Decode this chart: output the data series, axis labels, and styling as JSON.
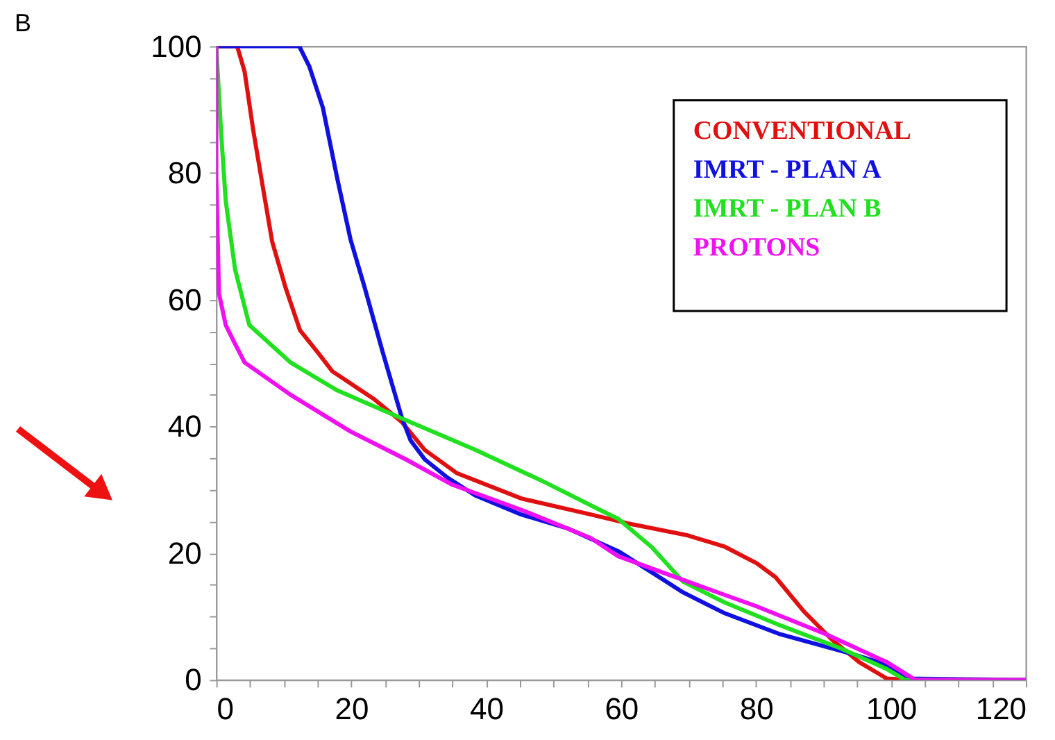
{
  "chart_data": {
    "type": "line",
    "title": "B",
    "xlim": [
      0,
      120
    ],
    "ylim": [
      0,
      100
    ],
    "xticks": [
      0,
      {
        "value": 5,
        "label": null
      },
      {
        "value": 10,
        "label": null
      },
      {
        "value": 15,
        "label": null
      },
      20,
      {
        "value": 25,
        "label": null
      },
      {
        "value": 30,
        "label": null
      },
      {
        "value": 35,
        "label": null
      },
      40,
      {
        "value": 45,
        "label": null
      },
      {
        "value": 50,
        "label": null
      },
      {
        "value": 55,
        "label": null
      },
      60,
      {
        "value": 65,
        "label": null
      },
      {
        "value": 70,
        "label": null
      },
      {
        "value": 75,
        "label": null
      },
      80,
      {
        "value": 85,
        "label": null
      },
      {
        "value": 90,
        "label": null
      },
      {
        "value": 95,
        "label": null
      },
      100,
      {
        "value": 105,
        "label": null
      },
      {
        "value": 110,
        "label": null
      },
      {
        "value": 115,
        "label": null
      },
      120
    ],
    "yticks": [
      0,
      {
        "value": 5,
        "label": null
      },
      {
        "value": 10,
        "label": null
      },
      {
        "value": 15,
        "label": null
      },
      20,
      {
        "value": 25,
        "label": null
      },
      {
        "value": 30,
        "label": null
      },
      {
        "value": 35,
        "label": null
      },
      40,
      {
        "value": 45,
        "label": null
      },
      {
        "value": 50,
        "label": null
      },
      {
        "value": 55,
        "label": null
      },
      60,
      {
        "value": 65,
        "label": null
      },
      {
        "value": 70,
        "label": null
      },
      {
        "value": 75,
        "label": null
      },
      80,
      {
        "value": 85,
        "label": null
      },
      {
        "value": 90,
        "label": null
      },
      {
        "value": 95,
        "label": null
      },
      100
    ],
    "grid": false,
    "legend": "top right",
    "marker": "none",
    "line_style": "solid",
    "series": [
      {
        "name": "CONVENTIONAL",
        "color": "#e01010",
        "x": [
          0,
          3.1,
          4.2,
          5.5,
          6.9,
          8.3,
          10.3,
          12.4,
          15.1,
          17.2,
          23.4,
          27.5,
          30.9,
          35.7,
          45.3,
          55.5,
          61,
          69.9,
          75.4,
          80.1,
          82.9,
          87.1,
          91.2,
          95.3,
          99.4,
          103
        ],
        "values": [
          100,
          100,
          96,
          86.6,
          77.8,
          69.1,
          61.8,
          55.2,
          51.6,
          48.7,
          44.3,
          40.7,
          36.3,
          32.6,
          28.6,
          26.1,
          24.7,
          22.8,
          21,
          18.4,
          16.2,
          10.8,
          6.4,
          2.8,
          0.2,
          0
        ]
      },
      {
        "name": "IMRT - PLAN A",
        "color": "#1010e0",
        "x": [
          0,
          12.3,
          13.8,
          15.8,
          17.9,
          19.9,
          22,
          24.7,
          27.5,
          28.8,
          30.9,
          34.3,
          38.4,
          45.2,
          52.1,
          59.6,
          65.1,
          69.2,
          75.4,
          83.6,
          93.9,
          99.4,
          102.1,
          120
        ],
        "values": [
          100,
          100,
          96.8,
          90.3,
          79.3,
          69.5,
          61.9,
          51.6,
          41.4,
          37.8,
          34.8,
          31.9,
          29.1,
          26.1,
          23.9,
          20.3,
          16.6,
          13.8,
          10.5,
          7.2,
          4.2,
          2.4,
          0.2,
          0
        ]
      },
      {
        "name": "IMRT - PLAN B",
        "color": "#20e020",
        "x": [
          0,
          0.7,
          1.4,
          2.8,
          4.9,
          11,
          17.9,
          28.1,
          38.4,
          48.7,
          56.9,
          59.6,
          64.5,
          69.2,
          75.4,
          83.6,
          92.5,
          99.4,
          102.1,
          120
        ],
        "values": [
          100,
          86.6,
          75.6,
          64.7,
          56,
          50.1,
          45.7,
          41,
          36.3,
          31.2,
          26.8,
          25.4,
          21,
          15.5,
          12.2,
          8.6,
          5,
          1.7,
          0,
          0
        ]
      },
      {
        "name": "PROTONS",
        "color": "#f010f0",
        "x": [
          0,
          0,
          0.4,
          1.4,
          2.8,
          4.2,
          11,
          19.9,
          28.1,
          35,
          45.3,
          55.5,
          59.6,
          69.9,
          80.1,
          90.4,
          99.4,
          103.6,
          120
        ],
        "values": [
          100,
          79.3,
          61,
          56,
          53,
          50.1,
          45,
          39.2,
          34.8,
          30.8,
          26.8,
          22.4,
          19.5,
          15.5,
          11.6,
          7.2,
          2.8,
          0,
          0
        ]
      }
    ]
  }
}
